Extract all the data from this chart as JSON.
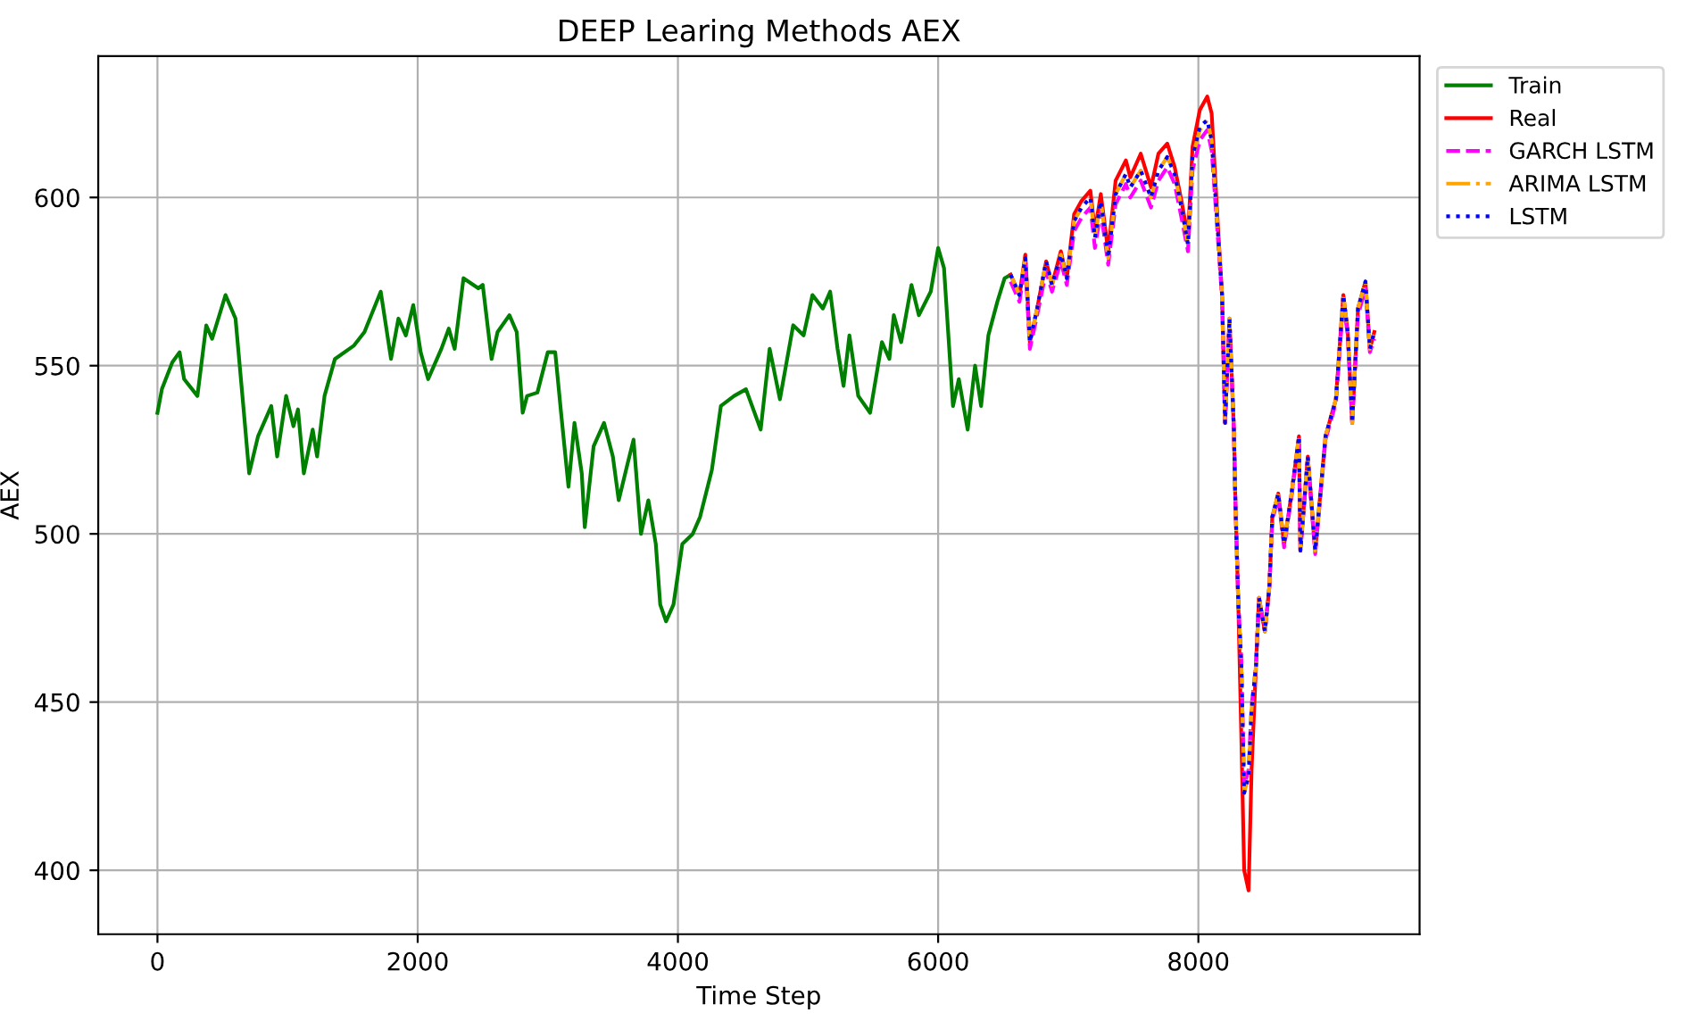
{
  "chart_data": {
    "type": "line",
    "title": "DEEP Learing Methods AEX",
    "xlabel": "Time Step",
    "ylabel": "AEX",
    "xlim": [
      -455,
      9700
    ],
    "ylim": [
      381,
      642
    ],
    "xticks": [
      0,
      2000,
      4000,
      6000,
      8000
    ],
    "yticks": [
      400,
      450,
      500,
      550,
      600
    ],
    "grid": true,
    "legend": "top right",
    "series": [
      {
        "name": "Train",
        "color": "#008000",
        "line_style": "solid",
        "x": [
          0,
          34,
          114,
          170,
          205,
          307,
          375,
          420,
          523,
          600,
          660,
          705,
          773,
          875,
          920,
          989,
          1045,
          1080,
          1125,
          1193,
          1227,
          1284,
          1364,
          1511,
          1591,
          1716,
          1795,
          1852,
          1909,
          1966,
          2023,
          2080,
          2182,
          2239,
          2284,
          2352,
          2466,
          2500,
          2568,
          2614,
          2705,
          2761,
          2807,
          2841,
          2920,
          3000,
          3057,
          3102,
          3159,
          3205,
          3261,
          3284,
          3352,
          3432,
          3500,
          3545,
          3614,
          3659,
          3716,
          3773,
          3830,
          3864,
          3909,
          3966,
          4034,
          4114,
          4170,
          4261,
          4330,
          4432,
          4523,
          4636,
          4705,
          4784,
          4886,
          4966,
          5034,
          5114,
          5170,
          5227,
          5273,
          5318,
          5386,
          5477,
          5568,
          5625,
          5659,
          5716,
          5795,
          5852,
          5943,
          6000,
          6045,
          6114,
          6159,
          6227,
          6284,
          6330,
          6386,
          6455,
          6511,
          6557
        ],
        "values": [
          536,
          543,
          551,
          554,
          546,
          541,
          562,
          558,
          571,
          564,
          538,
          518,
          529,
          538,
          523,
          541,
          532,
          537,
          518,
          531,
          523,
          541,
          552,
          556,
          560,
          572,
          552,
          564,
          559,
          568,
          554,
          546,
          555,
          561,
          555,
          576,
          573,
          574,
          552,
          560,
          565,
          560,
          536,
          541,
          542,
          554,
          554,
          536,
          514,
          533,
          518,
          502,
          526,
          533,
          523,
          510,
          521,
          528,
          500,
          510,
          497,
          479,
          474,
          479,
          497,
          500,
          505,
          519,
          538,
          541,
          543,
          531,
          555,
          540,
          562,
          559,
          571,
          567,
          572,
          555,
          544,
          559,
          541,
          536,
          557,
          552,
          565,
          557,
          574,
          565,
          572,
          585,
          579,
          538,
          546,
          531,
          550,
          538,
          559,
          569,
          576,
          577
        ]
      },
      {
        "name": "Real",
        "color": "#ff0000",
        "line_style": "solid",
        "x": [
          6557,
          6625,
          6670,
          6705,
          6761,
          6830,
          6875,
          6943,
          6989,
          7045,
          7102,
          7170,
          7205,
          7250,
          7307,
          7364,
          7443,
          7477,
          7557,
          7636,
          7693,
          7761,
          7818,
          7875,
          7920,
          7955,
          8011,
          8068,
          8102,
          8148,
          8182,
          8205,
          8239,
          8273,
          8284,
          8307,
          8330,
          8352,
          8386,
          8409,
          8443,
          8466,
          8511,
          8545,
          8568,
          8614,
          8659,
          8716,
          8773,
          8784,
          8841,
          8898,
          8977,
          9057,
          9114,
          9148,
          9182,
          9227,
          9284,
          9318,
          9352
        ],
        "values": [
          577,
          571,
          583,
          557,
          567,
          581,
          574,
          584,
          576,
          595,
          599,
          602,
          590,
          601,
          584,
          605,
          611,
          606,
          613,
          603,
          613,
          616,
          609,
          598,
          588,
          615,
          626,
          630,
          625,
          593,
          571,
          533,
          564,
          531,
          510,
          479,
          440,
          400,
          394,
          430,
          461,
          481,
          471,
          484,
          505,
          512,
          497,
          512,
          529,
          495,
          523,
          495,
          529,
          540,
          571,
          560,
          533,
          567,
          575,
          555,
          560
        ]
      },
      {
        "name": "GARCH LSTM",
        "color": "#ff00ff",
        "line_style": "dashed",
        "x": [
          6557,
          6625,
          6670,
          6705,
          6761,
          6830,
          6875,
          6943,
          6989,
          7045,
          7102,
          7170,
          7205,
          7250,
          7307,
          7364,
          7443,
          7477,
          7557,
          7636,
          7693,
          7761,
          7818,
          7875,
          7920,
          7955,
          8011,
          8068,
          8102,
          8148,
          8182,
          8205,
          8239,
          8273,
          8284,
          8307,
          8330,
          8352,
          8386,
          8409,
          8443,
          8466,
          8511,
          8545,
          8568,
          8614,
          8659,
          8716,
          8773,
          8784,
          8841,
          8898,
          8977,
          9057,
          9114,
          9148,
          9182,
          9227,
          9284,
          9318,
          9352
        ],
        "values": [
          575,
          569,
          580,
          555,
          565,
          578,
          572,
          581,
          574,
          590,
          594,
          597,
          585,
          596,
          580,
          598,
          604,
          600,
          605,
          597,
          605,
          609,
          604,
          593,
          584,
          608,
          617,
          620,
          614,
          589,
          570,
          533,
          562,
          531,
          511,
          480,
          463,
          425,
          430,
          449,
          461,
          481,
          471,
          484,
          504,
          511,
          496,
          511,
          528,
          495,
          522,
          494,
          528,
          539,
          569,
          559,
          533,
          565,
          573,
          554,
          558
        ]
      },
      {
        "name": "ARIMA LSTM",
        "color": "#ffa500",
        "line_style": "dashdot",
        "x": [
          6557,
          6625,
          6670,
          6705,
          6761,
          6830,
          6875,
          6943,
          6989,
          7045,
          7102,
          7170,
          7205,
          7250,
          7307,
          7364,
          7443,
          7477,
          7557,
          7636,
          7693,
          7761,
          7818,
          7875,
          7920,
          7955,
          8011,
          8068,
          8102,
          8148,
          8182,
          8205,
          8239,
          8273,
          8284,
          8307,
          8330,
          8352,
          8386,
          8409,
          8443,
          8466,
          8511,
          8545,
          8568,
          8614,
          8659,
          8716,
          8773,
          8784,
          8841,
          8898,
          8977,
          9057,
          9114,
          9148,
          9182,
          9227,
          9284,
          9318,
          9352
        ],
        "values": [
          577,
          571,
          582,
          557,
          567,
          581,
          574,
          583,
          576,
          593,
          597,
          600,
          588,
          599,
          582,
          601,
          607,
          603,
          608,
          600,
          608,
          612,
          607,
          596,
          586,
          612,
          620,
          623,
          617,
          591,
          571,
          533,
          564,
          531,
          510,
          479,
          461,
          423,
          428,
          448,
          461,
          481,
          471,
          484,
          505,
          512,
          497,
          512,
          529,
          495,
          523,
          495,
          529,
          540,
          571,
          560,
          533,
          567,
          575,
          555,
          560
        ]
      },
      {
        "name": "LSTM",
        "color": "#0000ff",
        "line_style": "dotted",
        "x": [
          6557,
          6625,
          6670,
          6705,
          6761,
          6830,
          6875,
          6943,
          6989,
          7045,
          7102,
          7170,
          7205,
          7250,
          7307,
          7364,
          7443,
          7477,
          7557,
          7636,
          7693,
          7761,
          7818,
          7875,
          7920,
          7955,
          8011,
          8068,
          8102,
          8148,
          8182,
          8205,
          8239,
          8273,
          8284,
          8307,
          8330,
          8352,
          8386,
          8409,
          8443,
          8466,
          8511,
          8545,
          8568,
          8614,
          8659,
          8716,
          8773,
          8784,
          8841,
          8898,
          8977,
          9057,
          9114,
          9148,
          9182,
          9227,
          9284,
          9318,
          9352
        ],
        "values": [
          577,
          571,
          582,
          557,
          567,
          581,
          574,
          583,
          576,
          593,
          597,
          600,
          588,
          599,
          582,
          601,
          607,
          603,
          608,
          600,
          608,
          612,
          607,
          596,
          586,
          612,
          621,
          623,
          617,
          591,
          571,
          533,
          564,
          531,
          510,
          479,
          461,
          423,
          428,
          448,
          461,
          481,
          471,
          484,
          505,
          512,
          497,
          512,
          529,
          495,
          523,
          495,
          529,
          540,
          571,
          560,
          533,
          567,
          575,
          555,
          560
        ]
      }
    ]
  }
}
